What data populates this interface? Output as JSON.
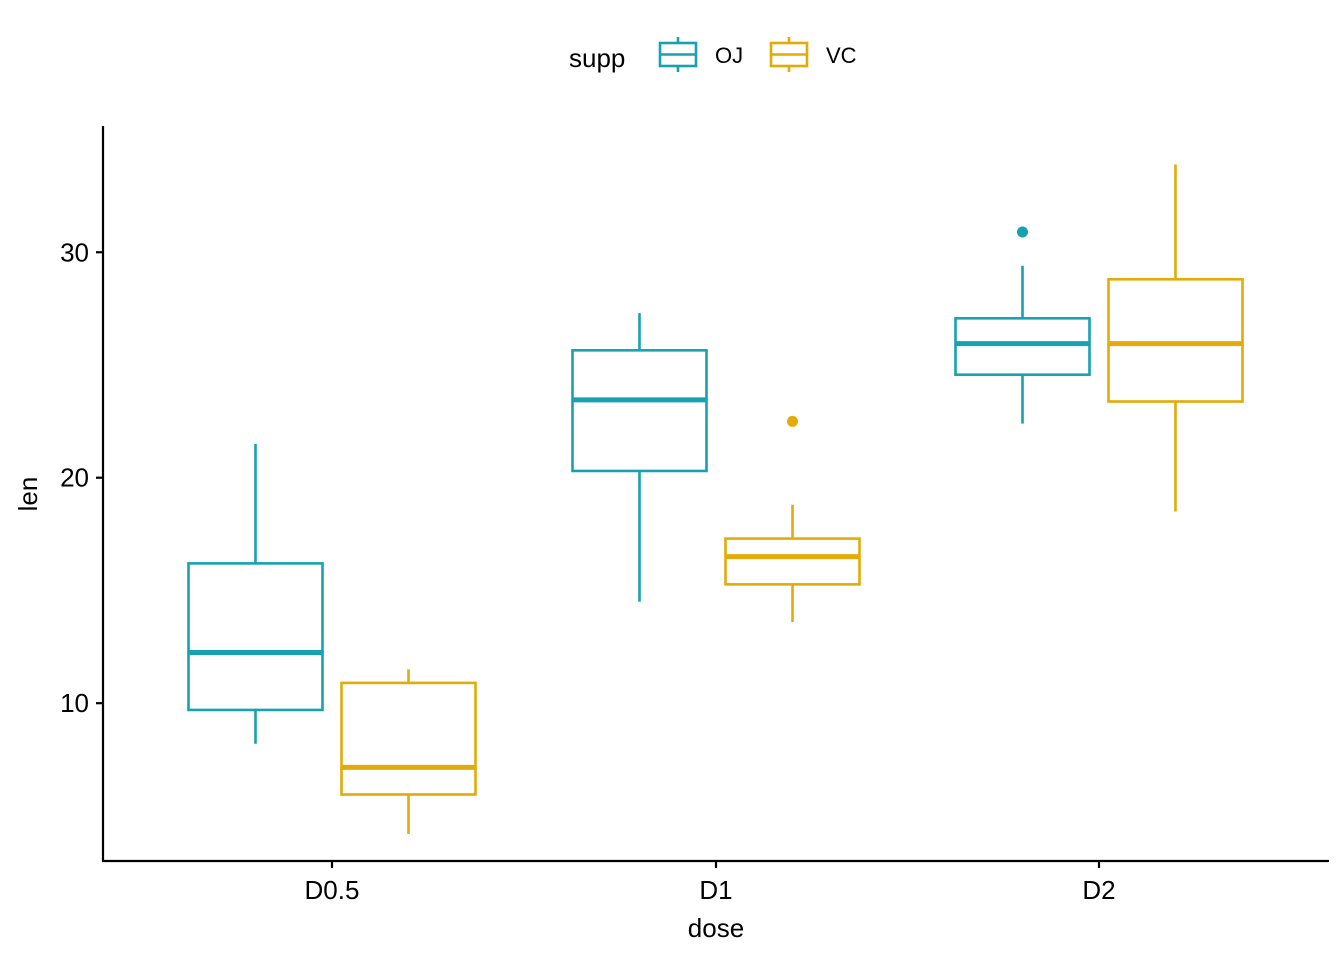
{
  "chart_data": {
    "type": "box",
    "xlabel": "dose",
    "ylabel": "len",
    "categories": [
      "D0.5",
      "D1",
      "D2"
    ],
    "y_ticks": [
      10,
      20,
      30
    ],
    "ylim": [
      3.0,
      35.6
    ],
    "grid": false,
    "legend": {
      "title": "supp",
      "position": "top"
    },
    "series": [
      {
        "name": "OJ",
        "color": "#17a2b1",
        "boxes": [
          {
            "category": "D0.5",
            "whisker_low": 8.2,
            "q1": 9.7,
            "median": 12.25,
            "q3": 16.2,
            "whisker_high": 21.5,
            "outliers": []
          },
          {
            "category": "D1",
            "whisker_low": 14.5,
            "q1": 20.3,
            "median": 23.45,
            "q3": 25.65,
            "whisker_high": 27.3,
            "outliers": []
          },
          {
            "category": "D2",
            "whisker_low": 22.4,
            "q1": 24.57,
            "median": 25.95,
            "q3": 27.07,
            "whisker_high": 29.4,
            "outliers": [
              30.9
            ]
          }
        ]
      },
      {
        "name": "VC",
        "color": "#e2ab07",
        "boxes": [
          {
            "category": "D0.5",
            "whisker_low": 4.2,
            "q1": 5.95,
            "median": 7.15,
            "q3": 10.9,
            "whisker_high": 11.5,
            "outliers": []
          },
          {
            "category": "D1",
            "whisker_low": 13.6,
            "q1": 15.27,
            "median": 16.5,
            "q3": 17.3,
            "whisker_high": 18.8,
            "outliers": [
              22.5
            ]
          },
          {
            "category": "D2",
            "whisker_low": 18.5,
            "q1": 23.38,
            "median": 25.95,
            "q3": 28.8,
            "whisker_high": 33.9,
            "outliers": []
          }
        ]
      }
    ]
  }
}
